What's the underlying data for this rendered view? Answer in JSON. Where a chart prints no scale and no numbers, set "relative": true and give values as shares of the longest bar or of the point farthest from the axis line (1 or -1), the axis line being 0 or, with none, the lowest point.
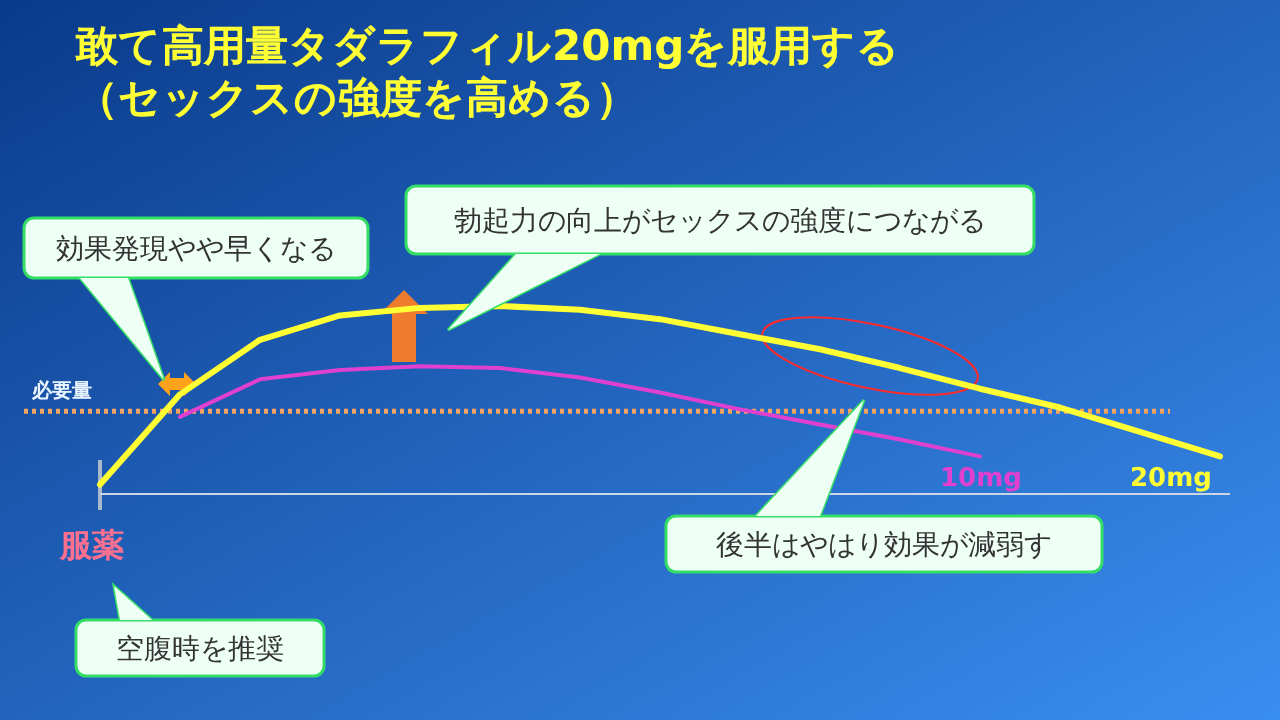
{
  "chart_data": {
    "type": "line",
    "title": "敢て高用量タダラフィル20mgを服用する（セックスの強度を高める）",
    "categories": [
      null,
      null,
      null,
      null,
      null,
      null,
      null,
      null,
      null,
      null,
      null,
      null,
      null,
      null,
      null
    ],
    "relative": true,
    "marker": "none",
    "line_style": "solid",
    "series": [
      {
        "name": "20mg",
        "color": "#ffff33",
        "values": [
          0.05,
          0.53,
          0.82,
          0.95,
          0.99,
          1.0,
          0.98,
          0.93,
          0.85,
          0.77,
          0.67,
          0.56,
          0.46,
          0.33,
          0.2
        ]
      },
      {
        "name": "10mg",
        "color": "#e040d0",
        "values": [
          null,
          0.41,
          0.61,
          0.66,
          0.68,
          0.67,
          0.62,
          0.54,
          0.45,
          0.37,
          0.29,
          0.2,
          null,
          null,
          null
        ]
      }
    ],
    "ref_lines": [
      {
        "axis": "y",
        "value": 0.44,
        "label": "必要量",
        "color": "#f4a460",
        "line_style": "dotted"
      }
    ],
    "annotations": [
      "効果発現やや早くなる",
      "勃起力の向上がセックスの強度につながる",
      "後半はやはり効果が減弱す",
      "服薬",
      "空腹時を推奨"
    ]
  }
}
